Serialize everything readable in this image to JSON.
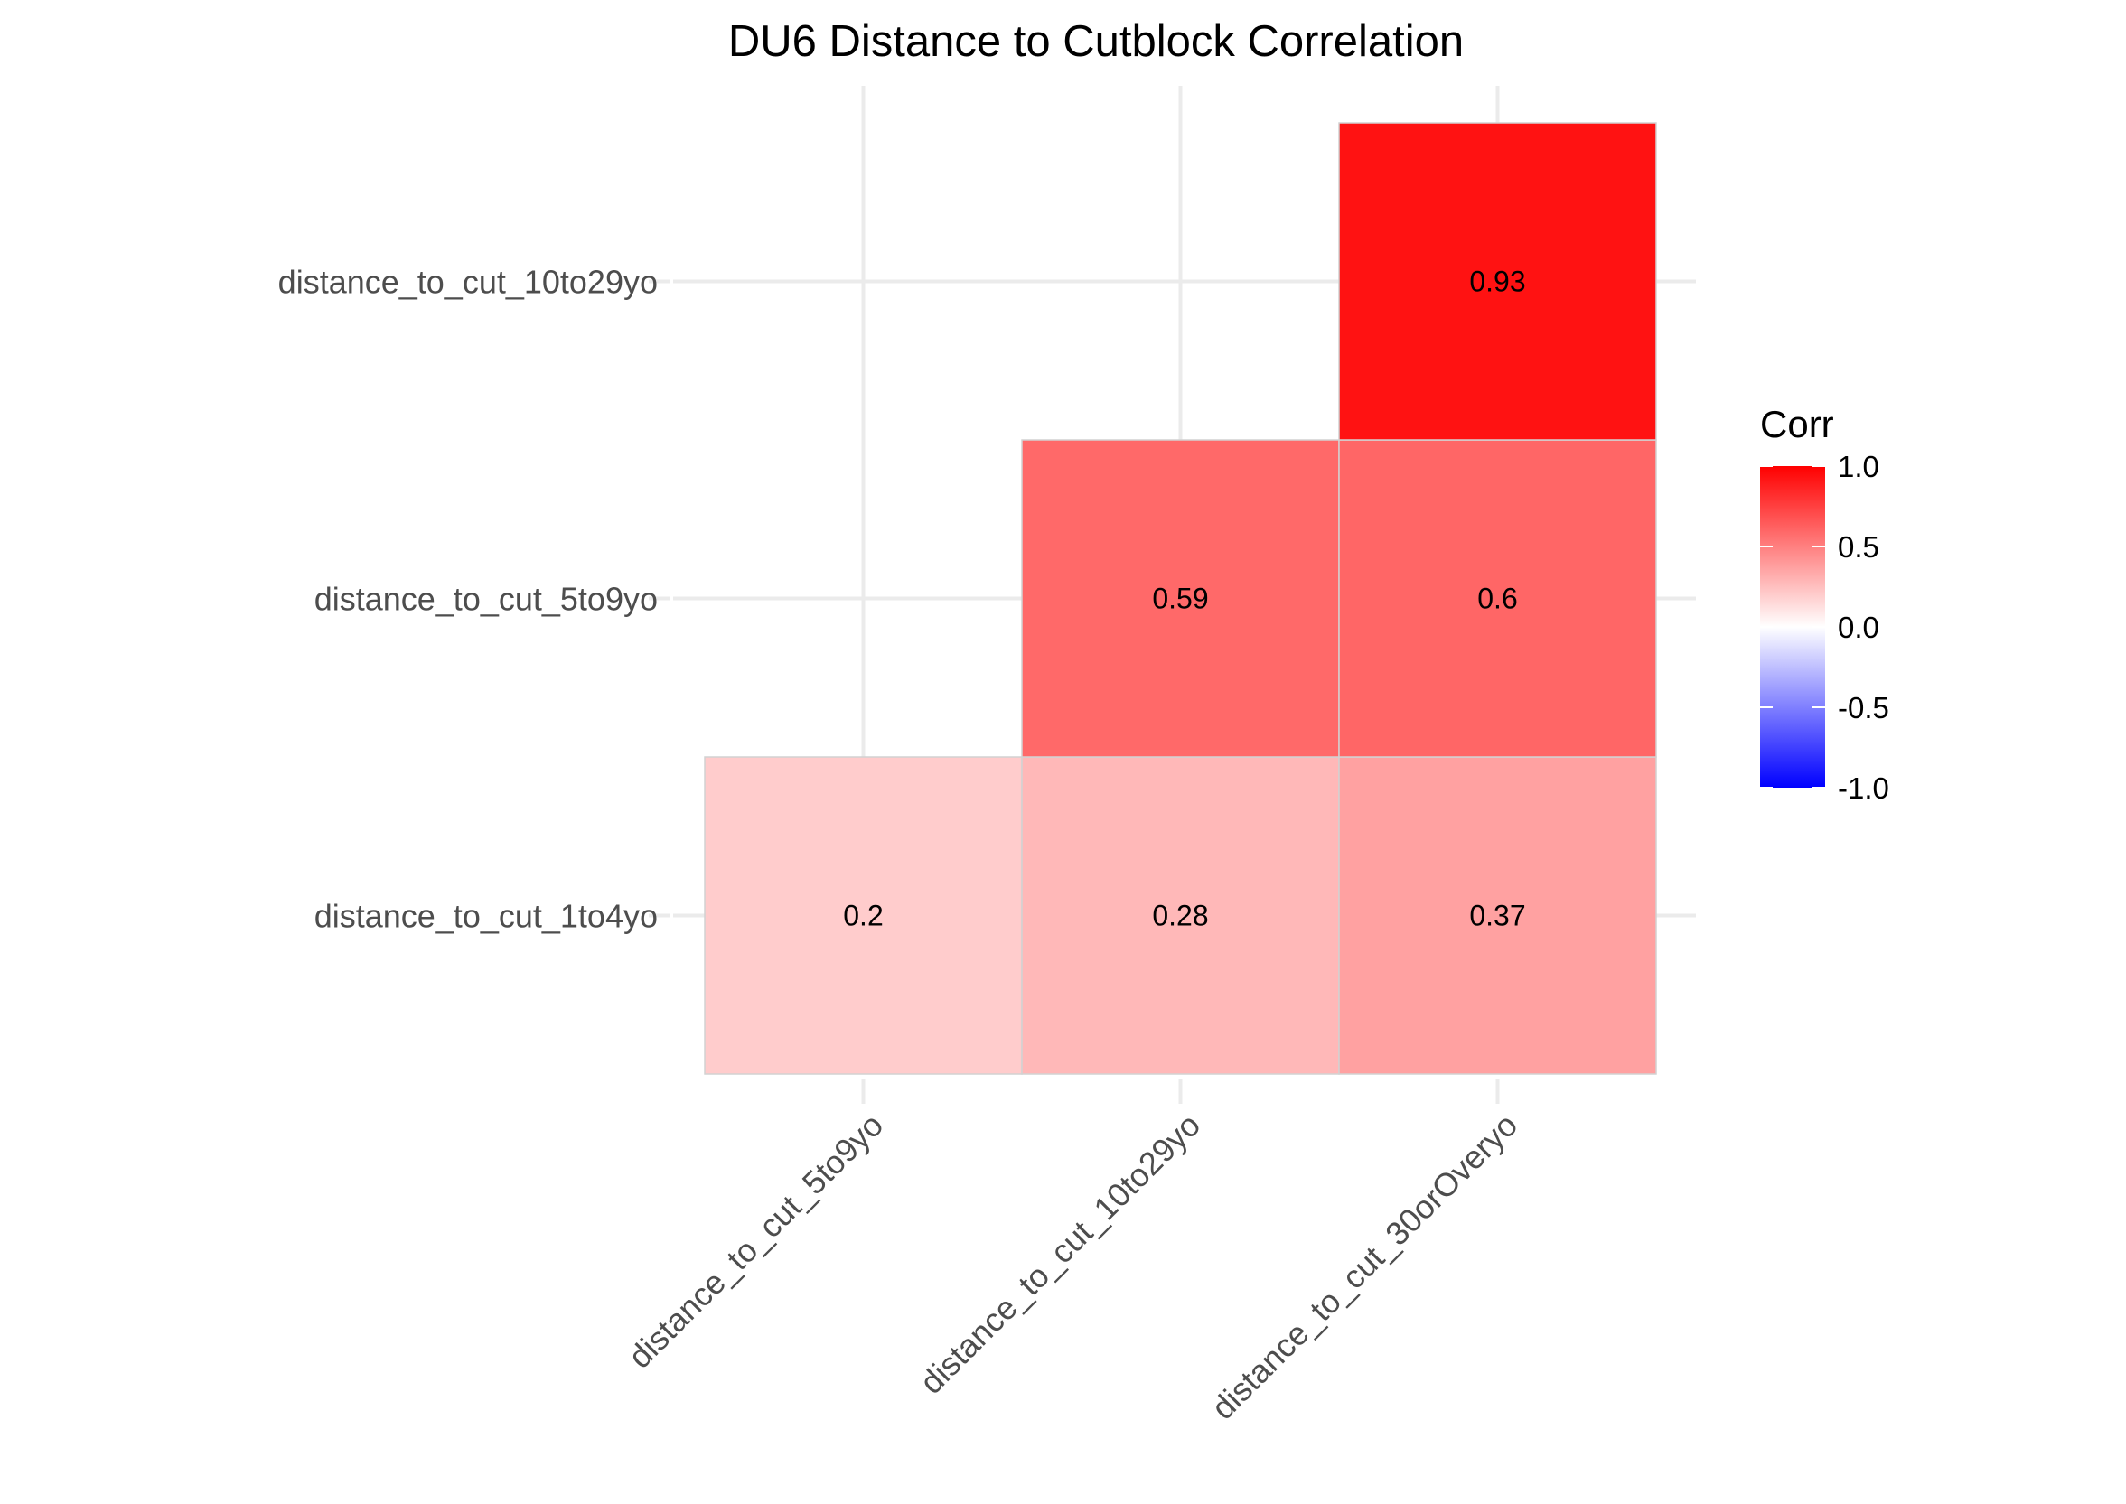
{
  "chart_data": {
    "type": "heatmap",
    "title": "DU6 Distance to Cutblock Correlation",
    "x_categories": [
      "distance_to_cut_5to9yo",
      "distance_to_cut_10to29yo",
      "distance_to_cut_30orOveryo"
    ],
    "y_categories": [
      "distance_to_cut_1to4yo",
      "distance_to_cut_5to9yo",
      "distance_to_cut_10to29yo"
    ],
    "cells": [
      {
        "x": "distance_to_cut_5to9yo",
        "y": "distance_to_cut_1to4yo",
        "value": 0.2,
        "label": "0.2"
      },
      {
        "x": "distance_to_cut_10to29yo",
        "y": "distance_to_cut_1to4yo",
        "value": 0.28,
        "label": "0.28"
      },
      {
        "x": "distance_to_cut_30orOveryo",
        "y": "distance_to_cut_1to4yo",
        "value": 0.37,
        "label": "0.37"
      },
      {
        "x": "distance_to_cut_10to29yo",
        "y": "distance_to_cut_5to9yo",
        "value": 0.59,
        "label": "0.59"
      },
      {
        "x": "distance_to_cut_30orOveryo",
        "y": "distance_to_cut_5to9yo",
        "value": 0.6,
        "label": "0.6"
      },
      {
        "x": "distance_to_cut_30orOveryo",
        "y": "distance_to_cut_10to29yo",
        "value": 0.93,
        "label": "0.93"
      }
    ],
    "legend": {
      "title": "Corr",
      "range": [
        -1,
        1
      ],
      "ticks": [
        1.0,
        0.5,
        0.0,
        -0.5,
        -1.0
      ],
      "tick_labels": [
        "1.0",
        "0.5",
        "0.0",
        "-0.5",
        "-1.0"
      ],
      "low_color": "#0000ff",
      "mid_color": "#ffffff",
      "high_color": "#ff0000",
      "placement": "right"
    },
    "grid": true
  }
}
